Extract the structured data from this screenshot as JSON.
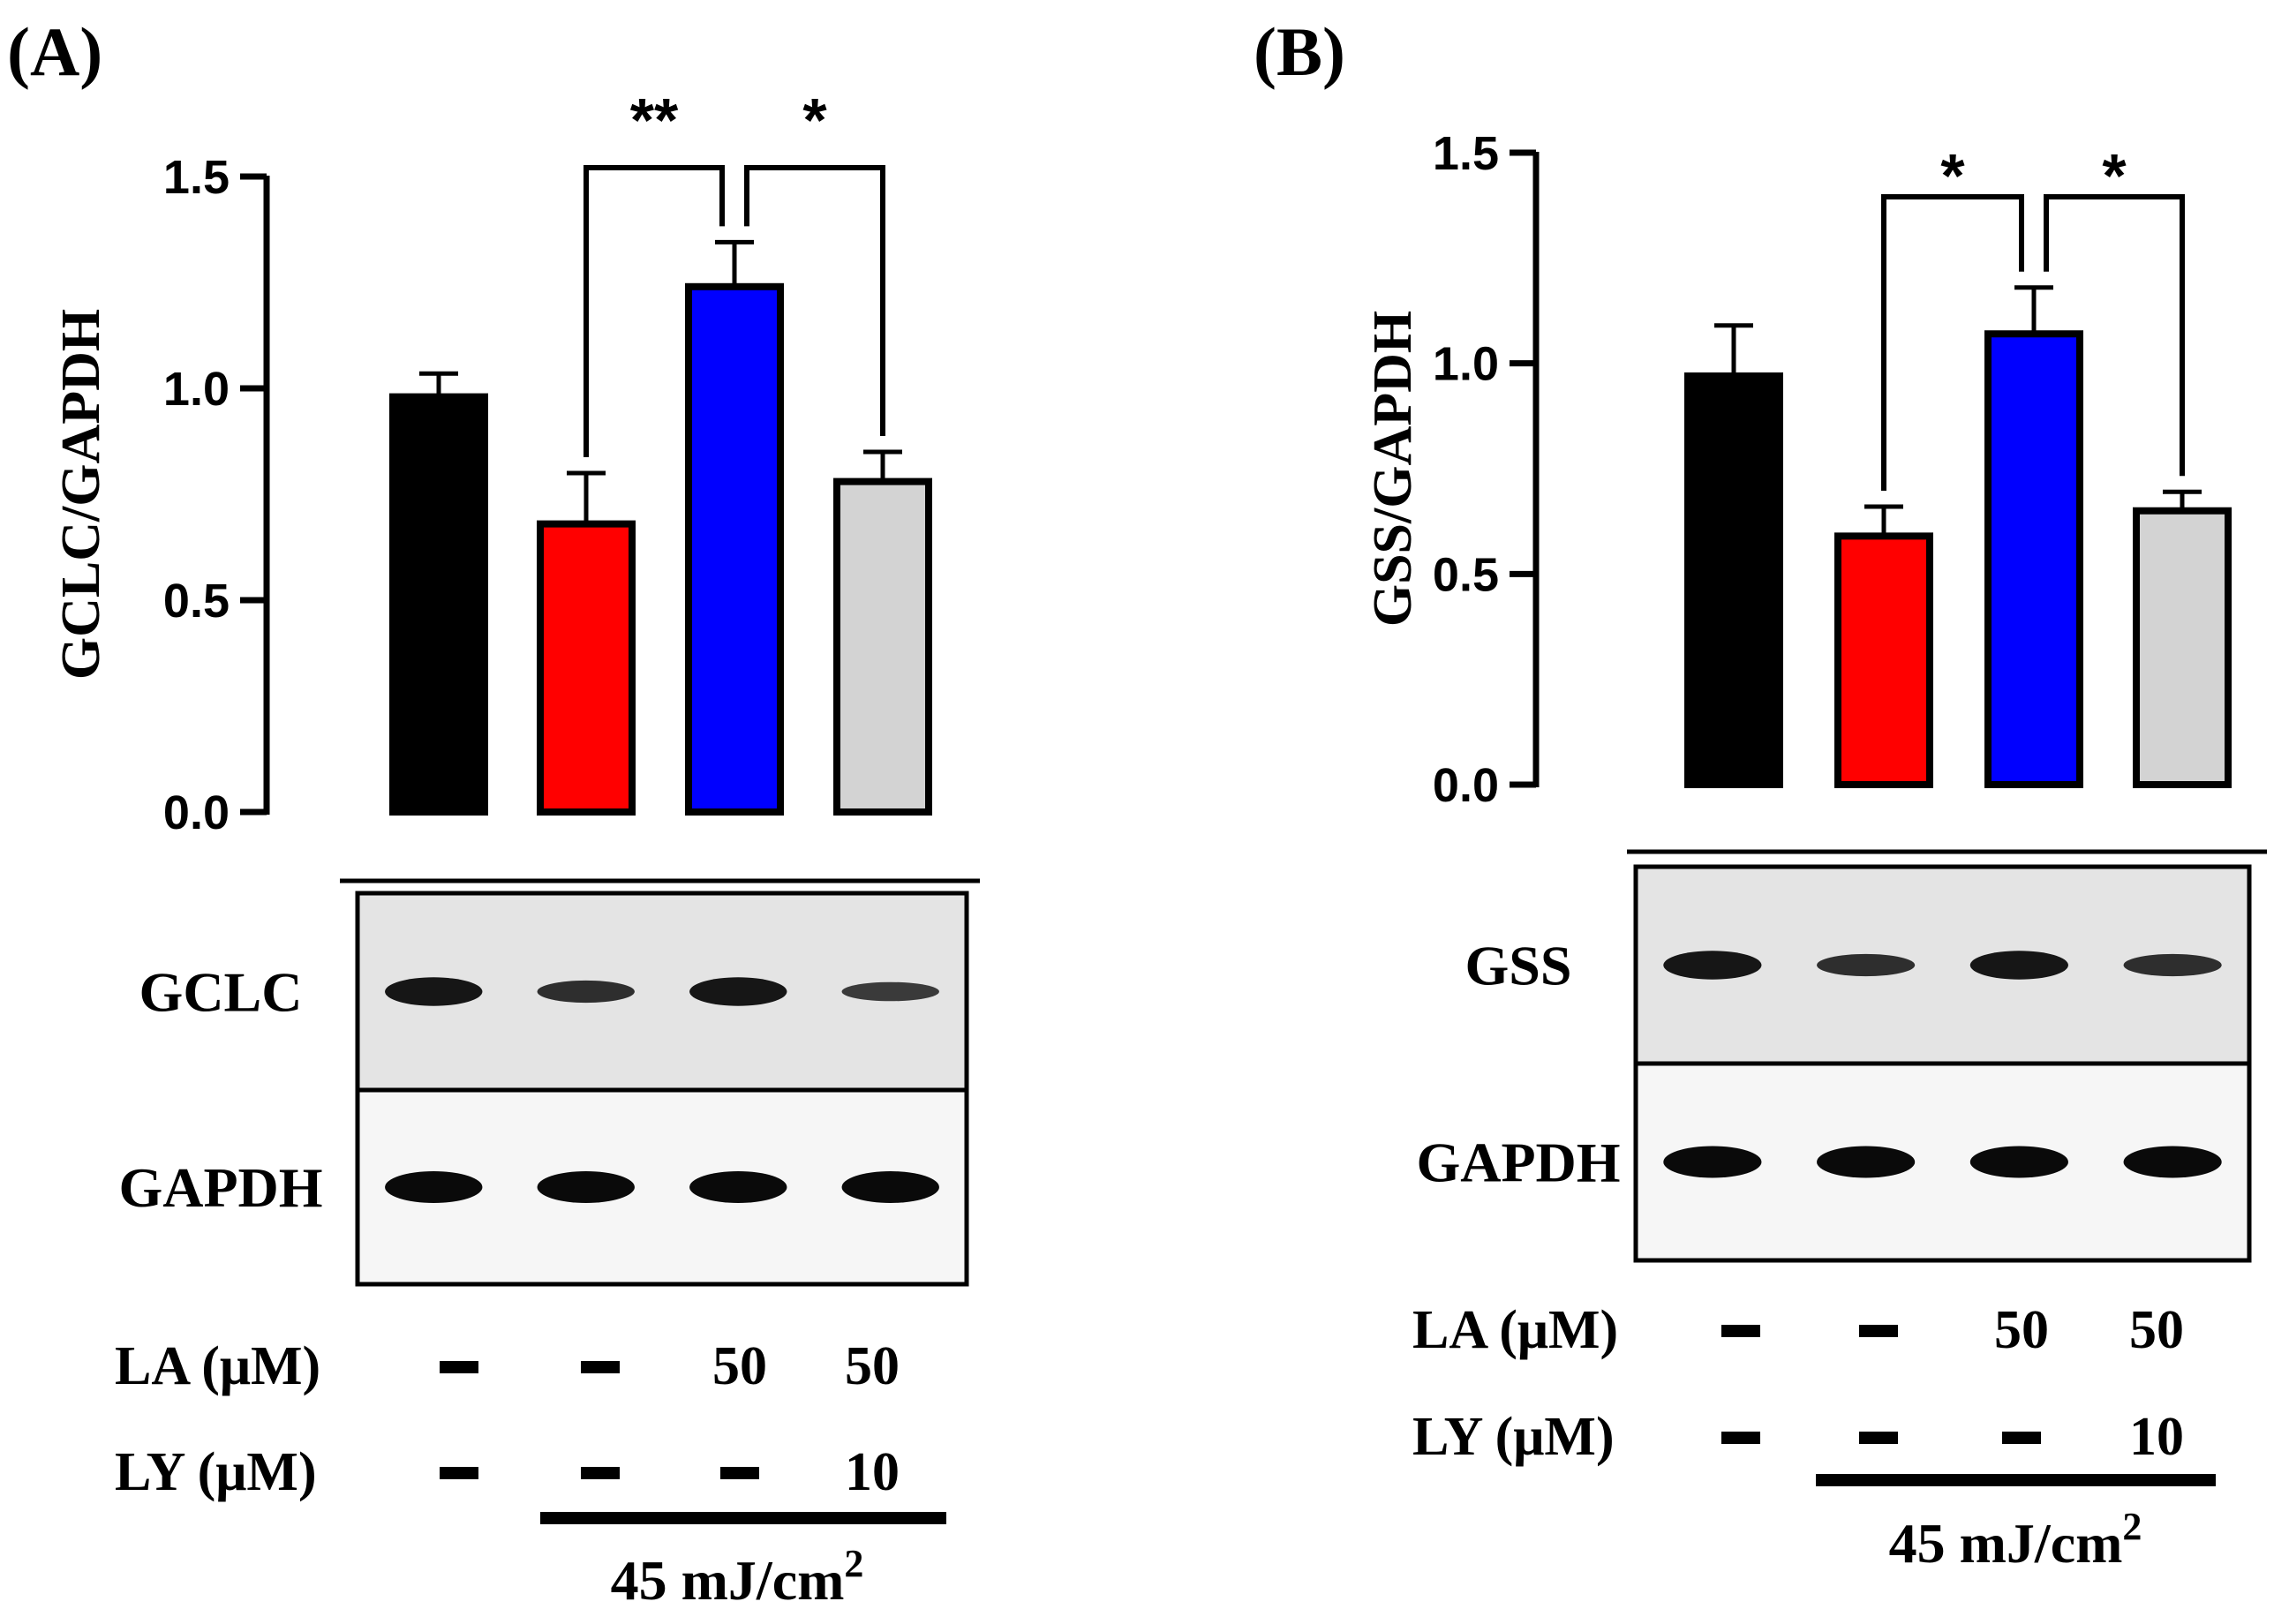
{
  "chart_data": [
    {
      "type": "bar",
      "panel_label": "(A)",
      "ylabel": "GCLC/GAPDH",
      "ylim": [
        0,
        1.5
      ],
      "yticks": [
        "0.0",
        "0.5",
        "1.0",
        "1.5"
      ],
      "values": [
        0.98,
        0.68,
        1.24,
        0.78
      ],
      "errors": [
        0.055,
        0.12,
        0.105,
        0.07
      ],
      "colors": [
        "#000000",
        "#ff0000",
        "#0000ff",
        "#d3d3d3"
      ],
      "significance": [
        {
          "from": 1,
          "to": 2,
          "label": "**"
        },
        {
          "from": 2,
          "to": 3,
          "label": "*"
        }
      ],
      "blot_rows": [
        {
          "label": "GCLC",
          "band_intensity": [
            0.85,
            0.55,
            0.85,
            0.4
          ]
        },
        {
          "label": "GAPDH",
          "band_intensity": [
            1,
            1,
            1,
            1
          ]
        }
      ],
      "treatments": [
        {
          "label": "LA (μM)",
          "values": [
            "-",
            "-",
            "50",
            "50"
          ]
        },
        {
          "label": "LY (μM)",
          "values": [
            "-",
            "-",
            "-",
            "10"
          ]
        }
      ],
      "uv_label": "45 mJ/cm",
      "uv_exp": "2"
    },
    {
      "type": "bar",
      "panel_label": "(B)",
      "ylabel": "GSS/GAPDH",
      "ylim": [
        0,
        1.5
      ],
      "yticks": [
        "0.0",
        "0.5",
        "1.0",
        "1.5"
      ],
      "values": [
        0.97,
        0.59,
        1.07,
        0.65
      ],
      "errors": [
        0.12,
        0.07,
        0.11,
        0.045
      ],
      "colors": [
        "#000000",
        "#ff0000",
        "#0000ff",
        "#d3d3d3"
      ],
      "significance": [
        {
          "from": 1,
          "to": 2,
          "label": "*"
        },
        {
          "from": 2,
          "to": 3,
          "label": "*"
        }
      ],
      "blot_rows": [
        {
          "label": "GSS",
          "band_intensity": [
            0.85,
            0.55,
            0.85,
            0.55
          ]
        },
        {
          "label": "GAPDH",
          "band_intensity": [
            1,
            1,
            1,
            1
          ]
        }
      ],
      "treatments": [
        {
          "label": "LA (μM)",
          "values": [
            "-",
            "-",
            "50",
            "50"
          ]
        },
        {
          "label": "LY (μM)",
          "values": [
            "-",
            "-",
            "-",
            "10"
          ]
        }
      ],
      "uv_label": "45 mJ/cm",
      "uv_exp": "2"
    }
  ]
}
